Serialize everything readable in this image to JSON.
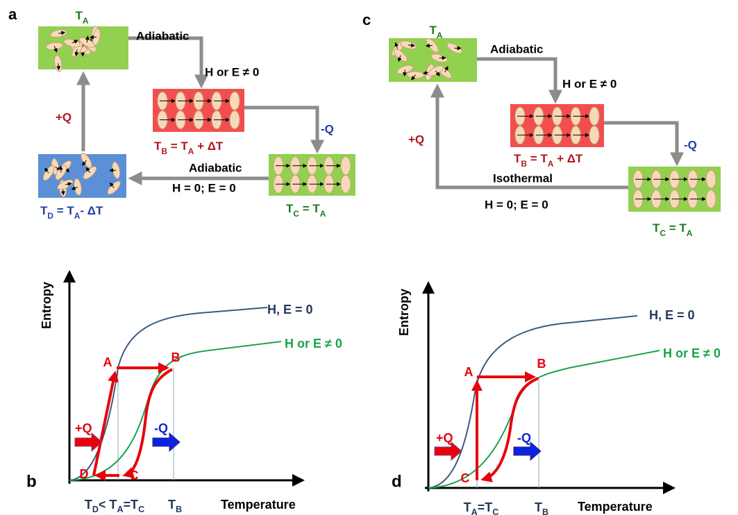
{
  "panel_a": {
    "label": "a",
    "texts": [
      [
        {
          "t": "T"
        },
        {
          "sub": "A"
        }
      ],
      "Adiabatic",
      "H or E ≠ 0",
      [
        {
          "t": "T"
        },
        {
          "sub": "B"
        },
        {
          "t": " = T"
        },
        {
          "sub": "A"
        },
        {
          "t": " + ΔT"
        }
      ],
      "-Q",
      "+Q",
      "Adiabatic",
      "H = 0; E = 0",
      [
        {
          "t": "T"
        },
        {
          "sub": "C"
        },
        {
          "t": " = T"
        },
        {
          "sub": "A"
        }
      ],
      [
        {
          "t": "T"
        },
        {
          "sub": "D"
        },
        {
          "t": " = T"
        },
        {
          "sub": "A"
        },
        {
          "t": "- ΔT"
        }
      ]
    ]
  },
  "panel_c": {
    "label": "c",
    "texts": [
      [
        {
          "t": "T"
        },
        {
          "sub": "A"
        }
      ],
      "Adiabatic",
      "H or E ≠ 0",
      [
        {
          "t": "T"
        },
        {
          "sub": "B"
        },
        {
          "t": " = T"
        },
        {
          "sub": "A"
        },
        {
          "t": " + ΔT"
        }
      ],
      "-Q",
      "+Q",
      "Isothermal",
      "H = 0; E = 0",
      [
        {
          "t": "T"
        },
        {
          "sub": "C"
        },
        {
          "t": " = T"
        },
        {
          "sub": "A"
        }
      ]
    ]
  },
  "panel_b": {
    "label": "b",
    "y_axis": "Entropy",
    "x_axis": "Temperature",
    "curve_labels": [
      "H, E = 0",
      "H or E ≠ 0"
    ],
    "points": [
      "A",
      "B",
      "C",
      "D"
    ],
    "heat": [
      "+Q",
      "-Q"
    ],
    "x_ticks": [
      [
        {
          "t": "T"
        },
        {
          "sub": "D"
        },
        {
          "t": "< T"
        },
        {
          "sub": "A"
        },
        {
          "t": "=T"
        },
        {
          "sub": "C"
        }
      ],
      [
        {
          "t": "T"
        },
        {
          "sub": "B"
        }
      ]
    ]
  },
  "panel_d": {
    "label": "d",
    "y_axis": "Entropy",
    "x_axis": "Temperature",
    "curve_labels": [
      "H, E = 0",
      "H or E ≠ 0"
    ],
    "points": [
      "A",
      "B",
      "C"
    ],
    "heat": [
      "+Q",
      "-Q"
    ],
    "x_ticks": [
      [
        {
          "t": "T"
        },
        {
          "sub": "A"
        },
        {
          "t": "=T"
        },
        {
          "sub": "C"
        }
      ],
      [
        {
          "t": "T"
        },
        {
          "sub": "B"
        }
      ]
    ]
  }
}
